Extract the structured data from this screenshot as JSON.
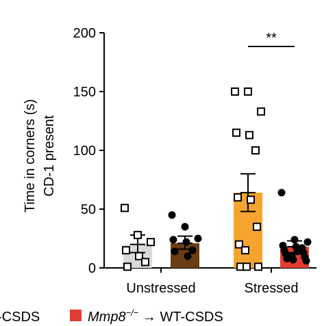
{
  "chart_data": {
    "type": "bar",
    "ylabel_line1": "Time in corners (s)",
    "ylabel_line2": "CD-1 present",
    "ylim": [
      0,
      200
    ],
    "yticks": [
      "0",
      "50",
      "100",
      "150",
      "200"
    ],
    "yticks_values": [
      0,
      50,
      100,
      150,
      200
    ],
    "categories": [
      "Unstressed",
      "Stressed"
    ],
    "significance": "**",
    "legend_labels": [
      "-CSDS",
      "Mmp8",
      "−/−",
      " → WT-CSDS"
    ],
    "colors": {
      "wt_unstressed": "#d9d9d9",
      "ko_unstressed": "#6b3d14",
      "wt_stressed": "#f5a52f",
      "ko_stressed": "#e23b32"
    },
    "bars": [
      {
        "group": "Unstressed",
        "series": "WT",
        "mean": 20,
        "sem": [
          13,
          28
        ],
        "marker": "square",
        "points": [
          51,
          28,
          22,
          15,
          10,
          5,
          1
        ]
      },
      {
        "group": "Unstressed",
        "series": "Mmp8-/-",
        "mean": 21,
        "sem": [
          16,
          27
        ],
        "marker": "circle",
        "points": [
          45,
          35,
          25,
          24,
          22,
          15,
          14,
          10
        ]
      },
      {
        "group": "Stressed",
        "series": "WT",
        "mean": 64,
        "sem": [
          48,
          80
        ],
        "marker": "square",
        "points": [
          150,
          150,
          133,
          115,
          113,
          100,
          60,
          58,
          35,
          20,
          15,
          1,
          1,
          1
        ]
      },
      {
        "group": "Stressed",
        "series": "Mmp8-/-",
        "mean": 18,
        "sem": [
          13,
          23
        ],
        "marker": "circle",
        "points": [
          64,
          24,
          22,
          19,
          18,
          17,
          15,
          14,
          13,
          12,
          10,
          9,
          8,
          7,
          6
        ]
      }
    ]
  }
}
